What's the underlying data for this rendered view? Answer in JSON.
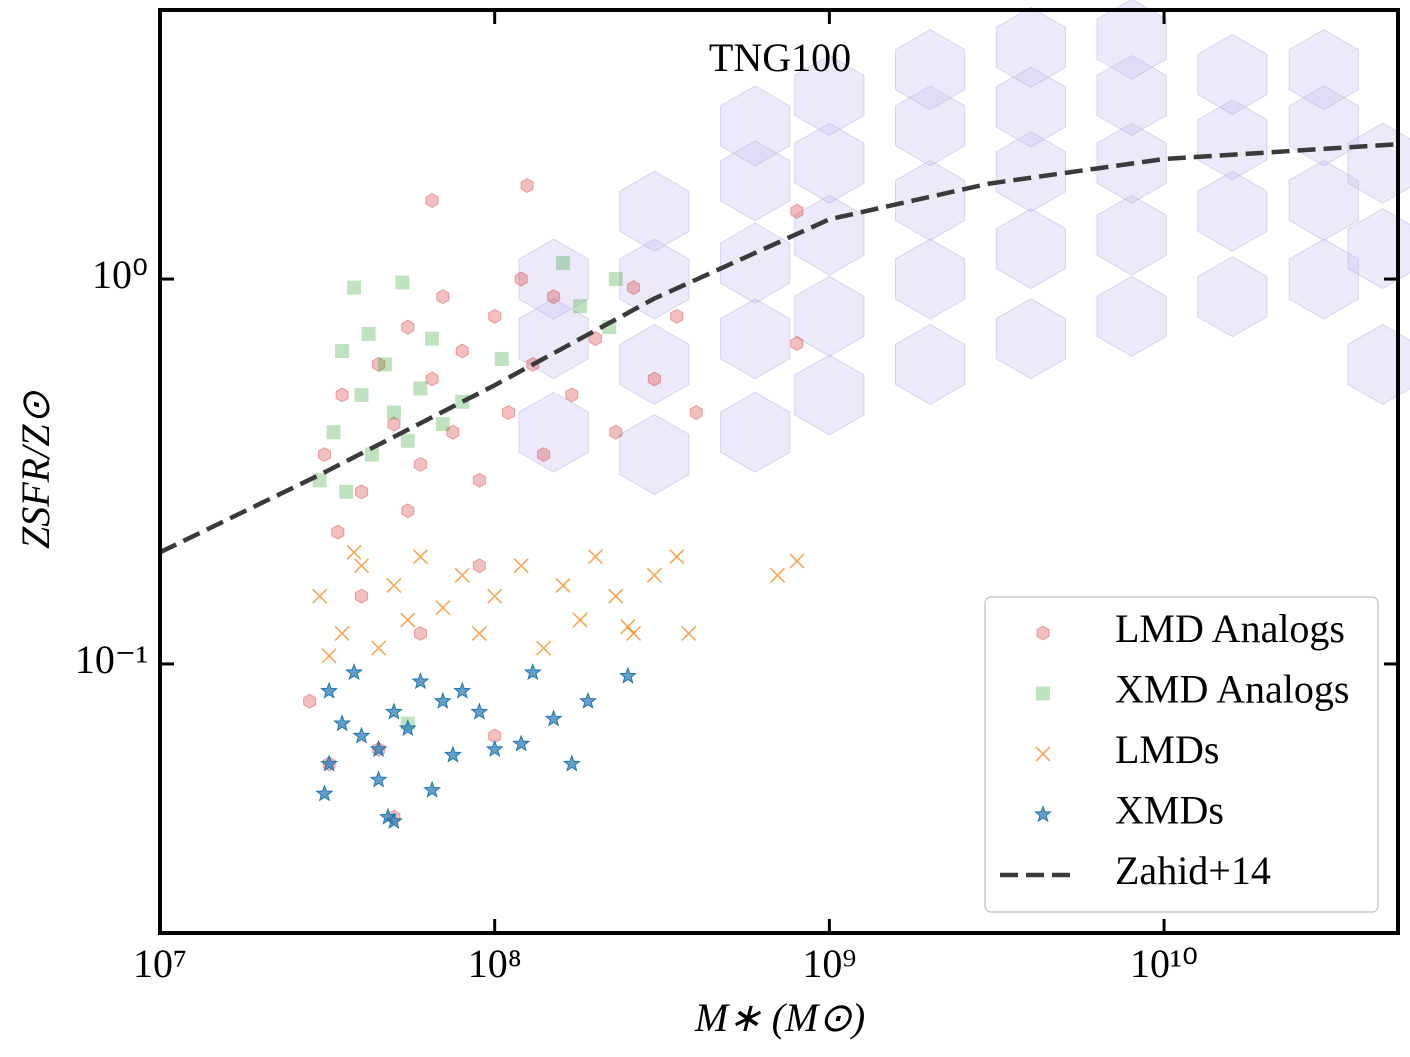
{
  "chart_data": {
    "type": "scatter",
    "title": "TNG100",
    "xlabel": "M∗ (M⊙)",
    "ylabel": "ZSFR/Z⊙",
    "xscale": "log",
    "yscale": "log",
    "xlim": [
      10000000,
      50000000000
    ],
    "ylim": [
      0.02,
      5
    ],
    "xticks": [
      {
        "value": 10000000,
        "label": "10⁷"
      },
      {
        "value": 100000000,
        "label": "10⁸"
      },
      {
        "value": 1000000000,
        "label": "10⁹"
      },
      {
        "value": 10000000000,
        "label": "10¹⁰"
      }
    ],
    "yticks": [
      {
        "value": 0.1,
        "label": "10⁻¹"
      },
      {
        "value": 1,
        "label": "10⁰"
      }
    ],
    "legend": "lower right",
    "hexbin": {
      "color": "#c8c4f0",
      "x": [
        150000000,
        150000000,
        150000000,
        300000000,
        300000000,
        300000000,
        300000000,
        600000000,
        600000000,
        600000000,
        600000000,
        600000000,
        1000000000,
        1000000000,
        1000000000,
        1000000000,
        1000000000,
        2000000000,
        2000000000,
        2000000000,
        2000000000,
        2000000000,
        4000000000,
        4000000000,
        4000000000,
        4000000000,
        4000000000,
        8000000000,
        8000000000,
        8000000000,
        8000000000,
        8000000000,
        16000000000,
        16000000000,
        16000000000,
        16000000000,
        30000000000,
        30000000000,
        30000000000,
        30000000000,
        45000000000,
        45000000000,
        45000000000
      ],
      "y": [
        0.4,
        0.7,
        1.0,
        0.35,
        0.6,
        1.0,
        1.5,
        0.4,
        0.7,
        1.1,
        1.8,
        2.5,
        0.5,
        0.8,
        1.3,
        2.0,
        3.0,
        0.6,
        1.0,
        1.6,
        2.5,
        3.5,
        0.7,
        1.2,
        1.9,
        2.8,
        4.0,
        0.8,
        1.3,
        2.0,
        3.0,
        4.2,
        0.9,
        1.5,
        2.3,
        3.4,
        1.0,
        1.6,
        2.5,
        3.5,
        0.6,
        1.2,
        2.0
      ]
    },
    "series": [
      {
        "name": "LMD Analogs",
        "color": "#d62728",
        "marker": "hexagon",
        "x": [
          31000000,
          35000000,
          40000000,
          45000000,
          50000000,
          55000000,
          60000000,
          65000000,
          70000000,
          75000000,
          80000000,
          90000000,
          100000000,
          110000000,
          120000000,
          130000000,
          140000000,
          150000000,
          170000000,
          200000000,
          230000000,
          260000000,
          300000000,
          350000000,
          400000000,
          65000000,
          125000000,
          800000000,
          800000000,
          45000000,
          50000000,
          32000000,
          28000000,
          100000000,
          55000000,
          34000000,
          40000000,
          60000000,
          90000000
        ],
        "y": [
          0.35,
          0.5,
          0.28,
          0.6,
          0.42,
          0.75,
          0.33,
          0.55,
          0.9,
          0.4,
          0.65,
          0.3,
          0.8,
          0.45,
          1.0,
          0.6,
          0.35,
          0.9,
          0.5,
          0.7,
          0.4,
          0.95,
          0.55,
          0.8,
          0.45,
          1.6,
          1.75,
          0.68,
          1.5,
          0.06,
          0.04,
          0.055,
          0.08,
          0.065,
          0.25,
          0.22,
          0.15,
          0.12,
          0.18
        ]
      },
      {
        "name": "XMD Analogs",
        "color": "#2ca02c",
        "marker": "square",
        "x": [
          30000000,
          33000000,
          36000000,
          40000000,
          43000000,
          47000000,
          50000000,
          55000000,
          60000000,
          65000000,
          70000000,
          38000000,
          53000000,
          160000000,
          230000000,
          180000000,
          220000000,
          35000000,
          55000000,
          42000000,
          80000000,
          105000000
        ],
        "y": [
          0.3,
          0.4,
          0.28,
          0.5,
          0.35,
          0.6,
          0.45,
          0.38,
          0.52,
          0.7,
          0.42,
          0.95,
          0.98,
          1.1,
          1.0,
          0.85,
          0.75,
          0.65,
          0.07,
          0.72,
          0.48,
          0.62
        ]
      },
      {
        "name": "LMDs",
        "color": "#ff7f0e",
        "marker": "x",
        "x": [
          30000000,
          35000000,
          40000000,
          45000000,
          50000000,
          55000000,
          60000000,
          70000000,
          80000000,
          90000000,
          100000000,
          120000000,
          140000000,
          160000000,
          180000000,
          200000000,
          230000000,
          260000000,
          300000000,
          350000000,
          380000000,
          700000000,
          800000000,
          32000000,
          38000000,
          250000000
        ],
        "y": [
          0.15,
          0.12,
          0.18,
          0.11,
          0.16,
          0.13,
          0.19,
          0.14,
          0.17,
          0.12,
          0.15,
          0.18,
          0.11,
          0.16,
          0.13,
          0.19,
          0.15,
          0.12,
          0.17,
          0.19,
          0.12,
          0.17,
          0.185,
          0.105,
          0.195,
          0.125
        ]
      },
      {
        "name": "XMDs",
        "color": "#1f77b4",
        "marker": "star",
        "x": [
          32000000,
          35000000,
          38000000,
          40000000,
          45000000,
          50000000,
          55000000,
          60000000,
          65000000,
          70000000,
          80000000,
          90000000,
          100000000,
          120000000,
          130000000,
          150000000,
          170000000,
          190000000,
          250000000,
          32000000,
          31000000,
          45000000,
          48000000,
          50000000,
          75000000
        ],
        "y": [
          0.085,
          0.07,
          0.095,
          0.065,
          0.06,
          0.075,
          0.068,
          0.09,
          0.047,
          0.08,
          0.085,
          0.075,
          0.06,
          0.062,
          0.095,
          0.072,
          0.055,
          0.08,
          0.093,
          0.055,
          0.046,
          0.05,
          0.04,
          0.039,
          0.058
        ]
      }
    ],
    "line": {
      "name": "Zahid+14",
      "color": "#3a3a3a",
      "linestyle": "dashed",
      "x": [
        10000000,
        30000000,
        100000000,
        300000000,
        1000000000,
        3000000000,
        10000000000,
        50000000000
      ],
      "y": [
        0.195,
        0.31,
        0.53,
        0.89,
        1.43,
        1.77,
        2.05,
        2.24
      ]
    }
  }
}
